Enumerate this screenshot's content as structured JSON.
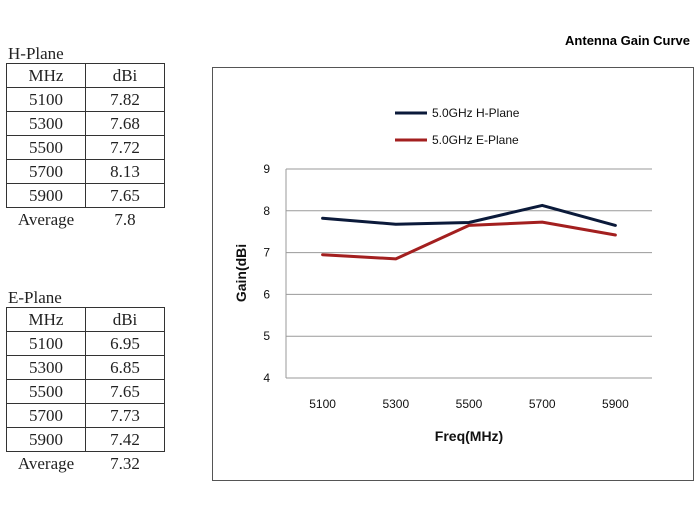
{
  "tables": [
    {
      "title": "H-Plane",
      "headers": [
        "MHz",
        "dBi"
      ],
      "rows": [
        [
          "5100",
          "7.82"
        ],
        [
          "5300",
          "7.68"
        ],
        [
          "5500",
          "7.72"
        ],
        [
          "5700",
          "8.13"
        ],
        [
          "5900",
          "7.65"
        ]
      ],
      "footer": [
        "Average",
        "7.8"
      ]
    },
    {
      "title": "E-Plane",
      "headers": [
        "MHz",
        "dBi"
      ],
      "rows": [
        [
          "5100",
          "6.95"
        ],
        [
          "5300",
          "6.85"
        ],
        [
          "5500",
          "7.65"
        ],
        [
          "5700",
          "7.73"
        ],
        [
          "5900",
          "7.42"
        ]
      ],
      "footer": [
        "Average",
        "7.32"
      ]
    }
  ],
  "chart_data": {
    "type": "line",
    "title": "Antenna Gain Curve",
    "xlabel": "Freq(MHz)",
    "ylabel": "Gain(dBi",
    "categories": [
      "5100",
      "5300",
      "5500",
      "5700",
      "5900"
    ],
    "ylim": [
      4,
      9
    ],
    "yticks": [
      "4",
      "5",
      "6",
      "7",
      "8",
      "9"
    ],
    "grid": true,
    "legend_position": "top",
    "series": [
      {
        "name": "5.0GHz H-Plane",
        "color": "#0b1a3a",
        "values": [
          7.82,
          7.68,
          7.72,
          8.13,
          7.65
        ]
      },
      {
        "name": "5.0GHz E-Plane",
        "color": "#a31f1f",
        "values": [
          6.95,
          6.85,
          7.65,
          7.73,
          7.42
        ]
      }
    ]
  }
}
